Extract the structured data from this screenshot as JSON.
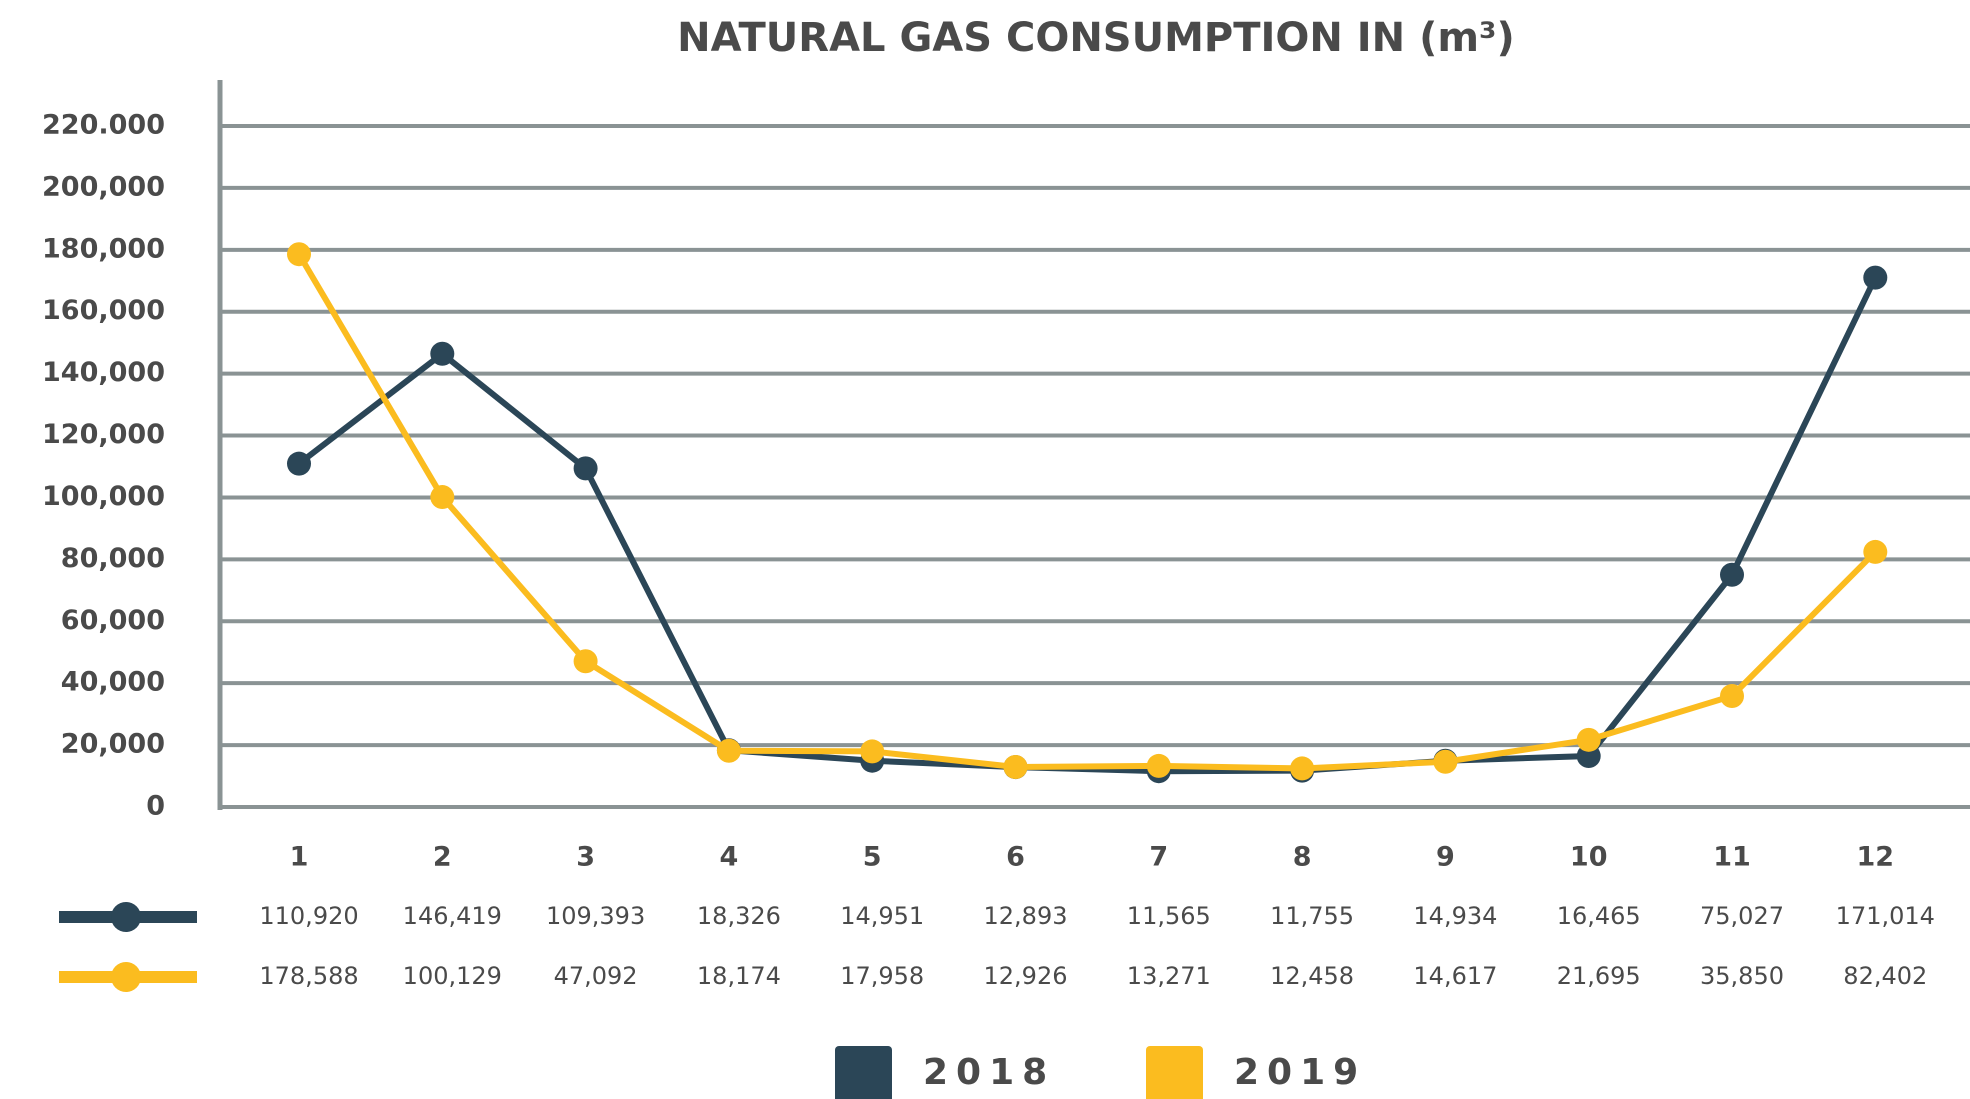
{
  "chart_data": {
    "type": "line",
    "title": "NATURAL GAS CONSUMPTION IN (m³)",
    "categories": [
      "1",
      "2",
      "3",
      "4",
      "5",
      "6",
      "7",
      "8",
      "9",
      "10",
      "11",
      "12"
    ],
    "series": [
      {
        "name": "2018",
        "color": "#2b4657",
        "values": [
          110920,
          146419,
          109393,
          18326,
          14951,
          12893,
          11565,
          11755,
          14934,
          16465,
          75027,
          171014
        ],
        "value_labels": [
          "110,920",
          "146,419",
          "109,393",
          "18,326",
          "14,951",
          "12,893",
          "11,565",
          "11,755",
          "14,934",
          "16,465",
          "75,027",
          "171,014"
        ]
      },
      {
        "name": "2019",
        "color": "#fbbc1f",
        "values": [
          178588,
          100129,
          47092,
          18174,
          17958,
          12926,
          13271,
          12458,
          14617,
          21695,
          35850,
          82402
        ],
        "value_labels": [
          "178,588",
          "100,129",
          "47,092",
          "18,174",
          "17,958",
          "12,926",
          "13,271",
          "12,458",
          "14,617",
          "21,695",
          "35,850",
          "82,402"
        ]
      }
    ],
    "ylim": [
      0,
      220000
    ],
    "yticks": [
      0,
      {
        "value": 20000,
        "label": "20,000"
      },
      {
        "value": 40000,
        "label": "40,000"
      },
      {
        "value": 60000,
        "label": "60,000"
      },
      {
        "value": 80000,
        "label": "80,000"
      },
      {
        "value": 100000,
        "label": "100,000"
      },
      {
        "value": 120000,
        "label": "120,000"
      },
      {
        "value": 140000,
        "label": "140,000"
      },
      {
        "value": 160000,
        "label": "160,000"
      },
      {
        "value": 180000,
        "label": "180,000"
      },
      {
        "value": 200000,
        "label": "200,000"
      },
      {
        "value": 220000,
        "label": "220.000"
      }
    ],
    "grid": true
  }
}
